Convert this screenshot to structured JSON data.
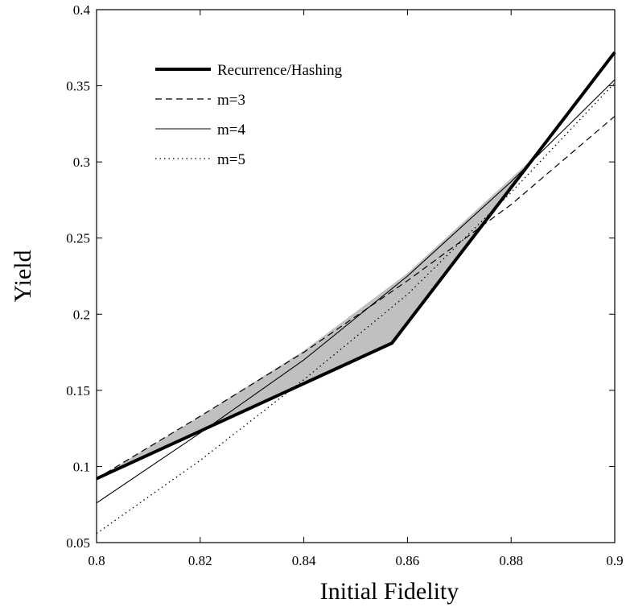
{
  "chart_data": {
    "type": "line",
    "title": "",
    "xlabel": "Initial Fidelity",
    "ylabel": "Yield",
    "xlim": [
      0.8,
      0.9
    ],
    "ylim": [
      0.05,
      0.4
    ],
    "x_ticks": [
      0.8,
      0.82,
      0.84,
      0.86,
      0.88,
      0.9
    ],
    "x_tick_labels": [
      "0.8",
      "0.82",
      "0.84",
      "0.86",
      "0.88",
      "0.9"
    ],
    "y_ticks": [
      0.05,
      0.1,
      0.15,
      0.2,
      0.25,
      0.3,
      0.35,
      0.4
    ],
    "y_tick_labels": [
      "0.05",
      "0.1",
      "0.15",
      "0.2",
      "0.25",
      "0.3",
      "0.35",
      "0.4"
    ],
    "grid": false,
    "legend_position": "top-left",
    "series": [
      {
        "name": "Recurrence/Hashing",
        "style": "thick-solid",
        "x": [
          0.8,
          0.857,
          0.9
        ],
        "y": [
          0.092,
          0.181,
          0.372
        ]
      },
      {
        "name": "m=3",
        "style": "dashed",
        "x": [
          0.8,
          0.82,
          0.84,
          0.86,
          0.88,
          0.9
        ],
        "y": [
          0.092,
          0.133,
          0.175,
          0.222,
          0.272,
          0.33
        ]
      },
      {
        "name": "m=4",
        "style": "thin-solid",
        "x": [
          0.8,
          0.82,
          0.84,
          0.86,
          0.88,
          0.9
        ],
        "y": [
          0.076,
          0.122,
          0.17,
          0.225,
          0.287,
          0.354
        ]
      },
      {
        "name": "m=5",
        "style": "dotted",
        "x": [
          0.8,
          0.82,
          0.84,
          0.86,
          0.88,
          0.9
        ],
        "y": [
          0.056,
          0.104,
          0.157,
          0.213,
          0.28,
          0.352
        ]
      }
    ],
    "shaded_region": {
      "description": "gap between upper envelope of m-curves and Recurrence/Hashing",
      "color": "#c0c0c0",
      "x": [
        0.8,
        0.82,
        0.84,
        0.86,
        0.886,
        0.857
      ],
      "y": [
        0.092,
        0.133,
        0.176,
        0.227,
        0.308,
        0.181
      ]
    }
  }
}
